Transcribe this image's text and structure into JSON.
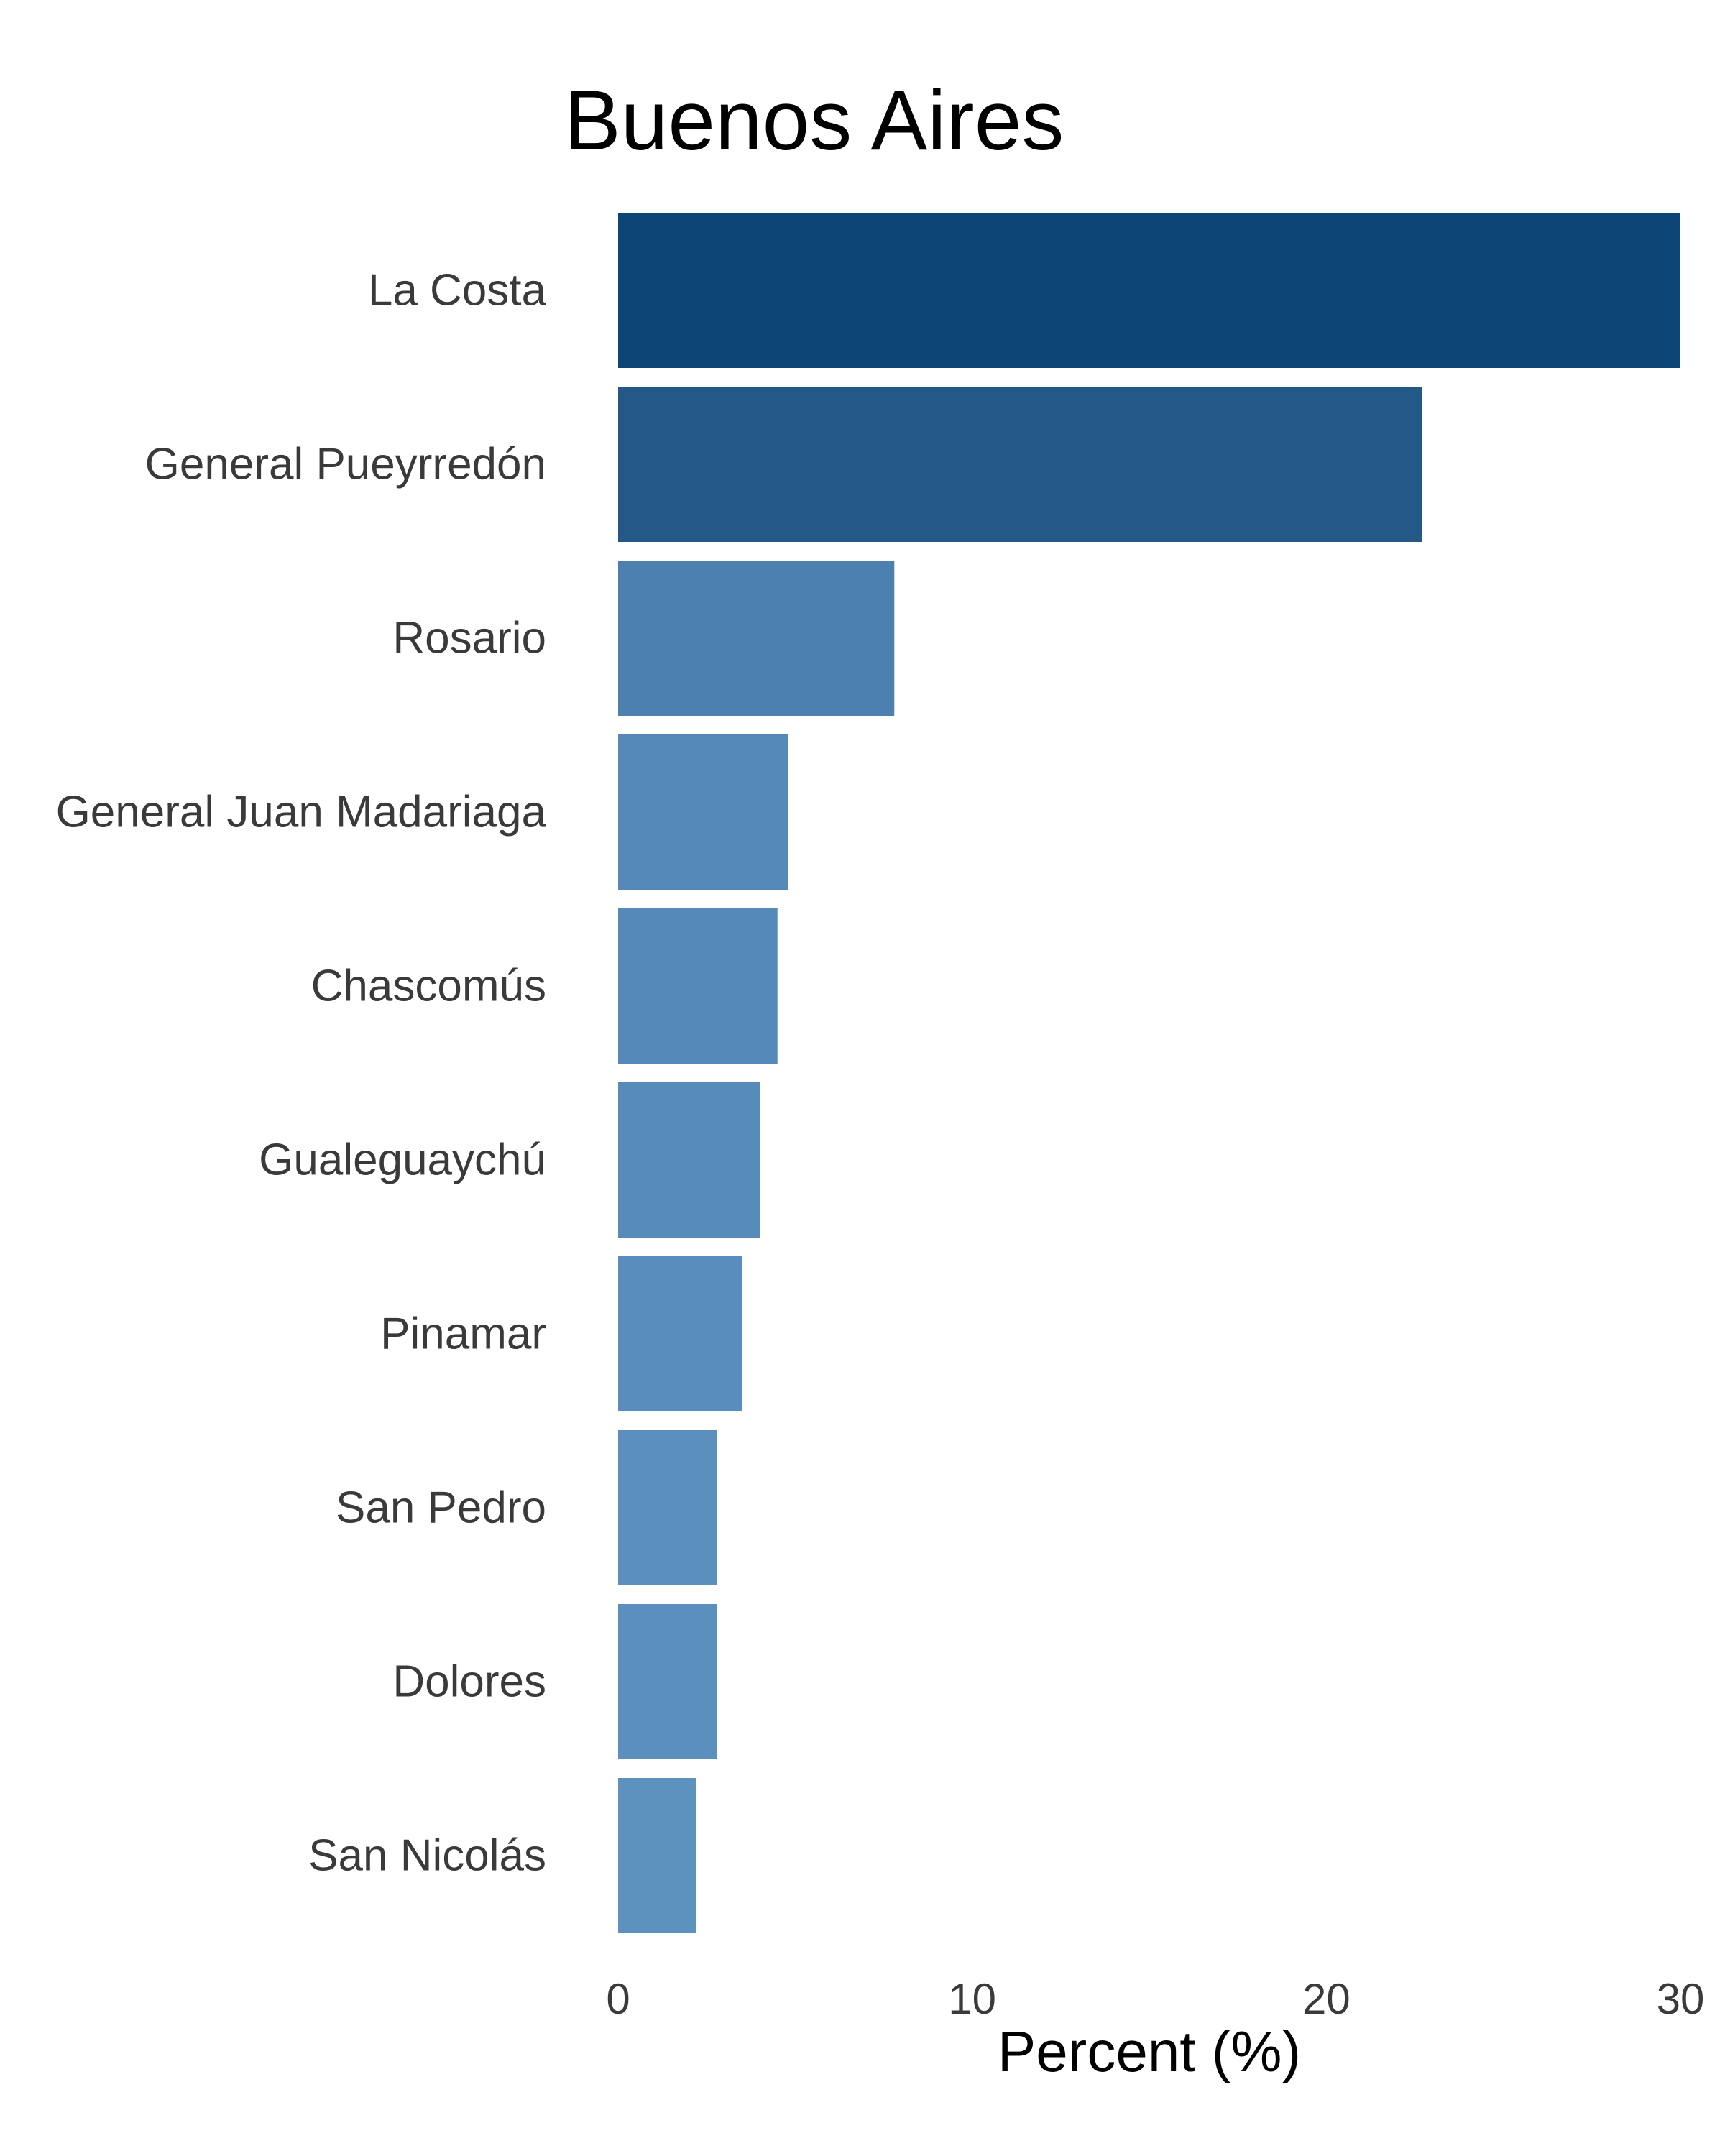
{
  "chart_data": {
    "type": "bar",
    "orientation": "horizontal",
    "title": "Buenos Aires",
    "xlabel": "Percent (%)",
    "ylabel": "",
    "xlim": [
      0,
      30
    ],
    "xticks": [
      "0",
      "10",
      "20",
      "30"
    ],
    "grid": false,
    "legend": "none",
    "categories": [
      "La Costa",
      "General Pueyrredón",
      "Rosario",
      "General Juan Madariaga",
      "Chascomús",
      "Gualeguaychú",
      "Pinamar",
      "San Pedro",
      "Dolores",
      "San Nicolás"
    ],
    "values": [
      30.0,
      22.7,
      7.8,
      4.8,
      4.5,
      4.0,
      3.5,
      2.8,
      2.8,
      2.2
    ],
    "colors": [
      "#0b4677",
      "#245887",
      "#4c80af",
      "#5589b8",
      "#5589b8",
      "#578bb9",
      "#598dbb",
      "#5b8fbd",
      "#5b8fbd",
      "#5d91be"
    ]
  }
}
